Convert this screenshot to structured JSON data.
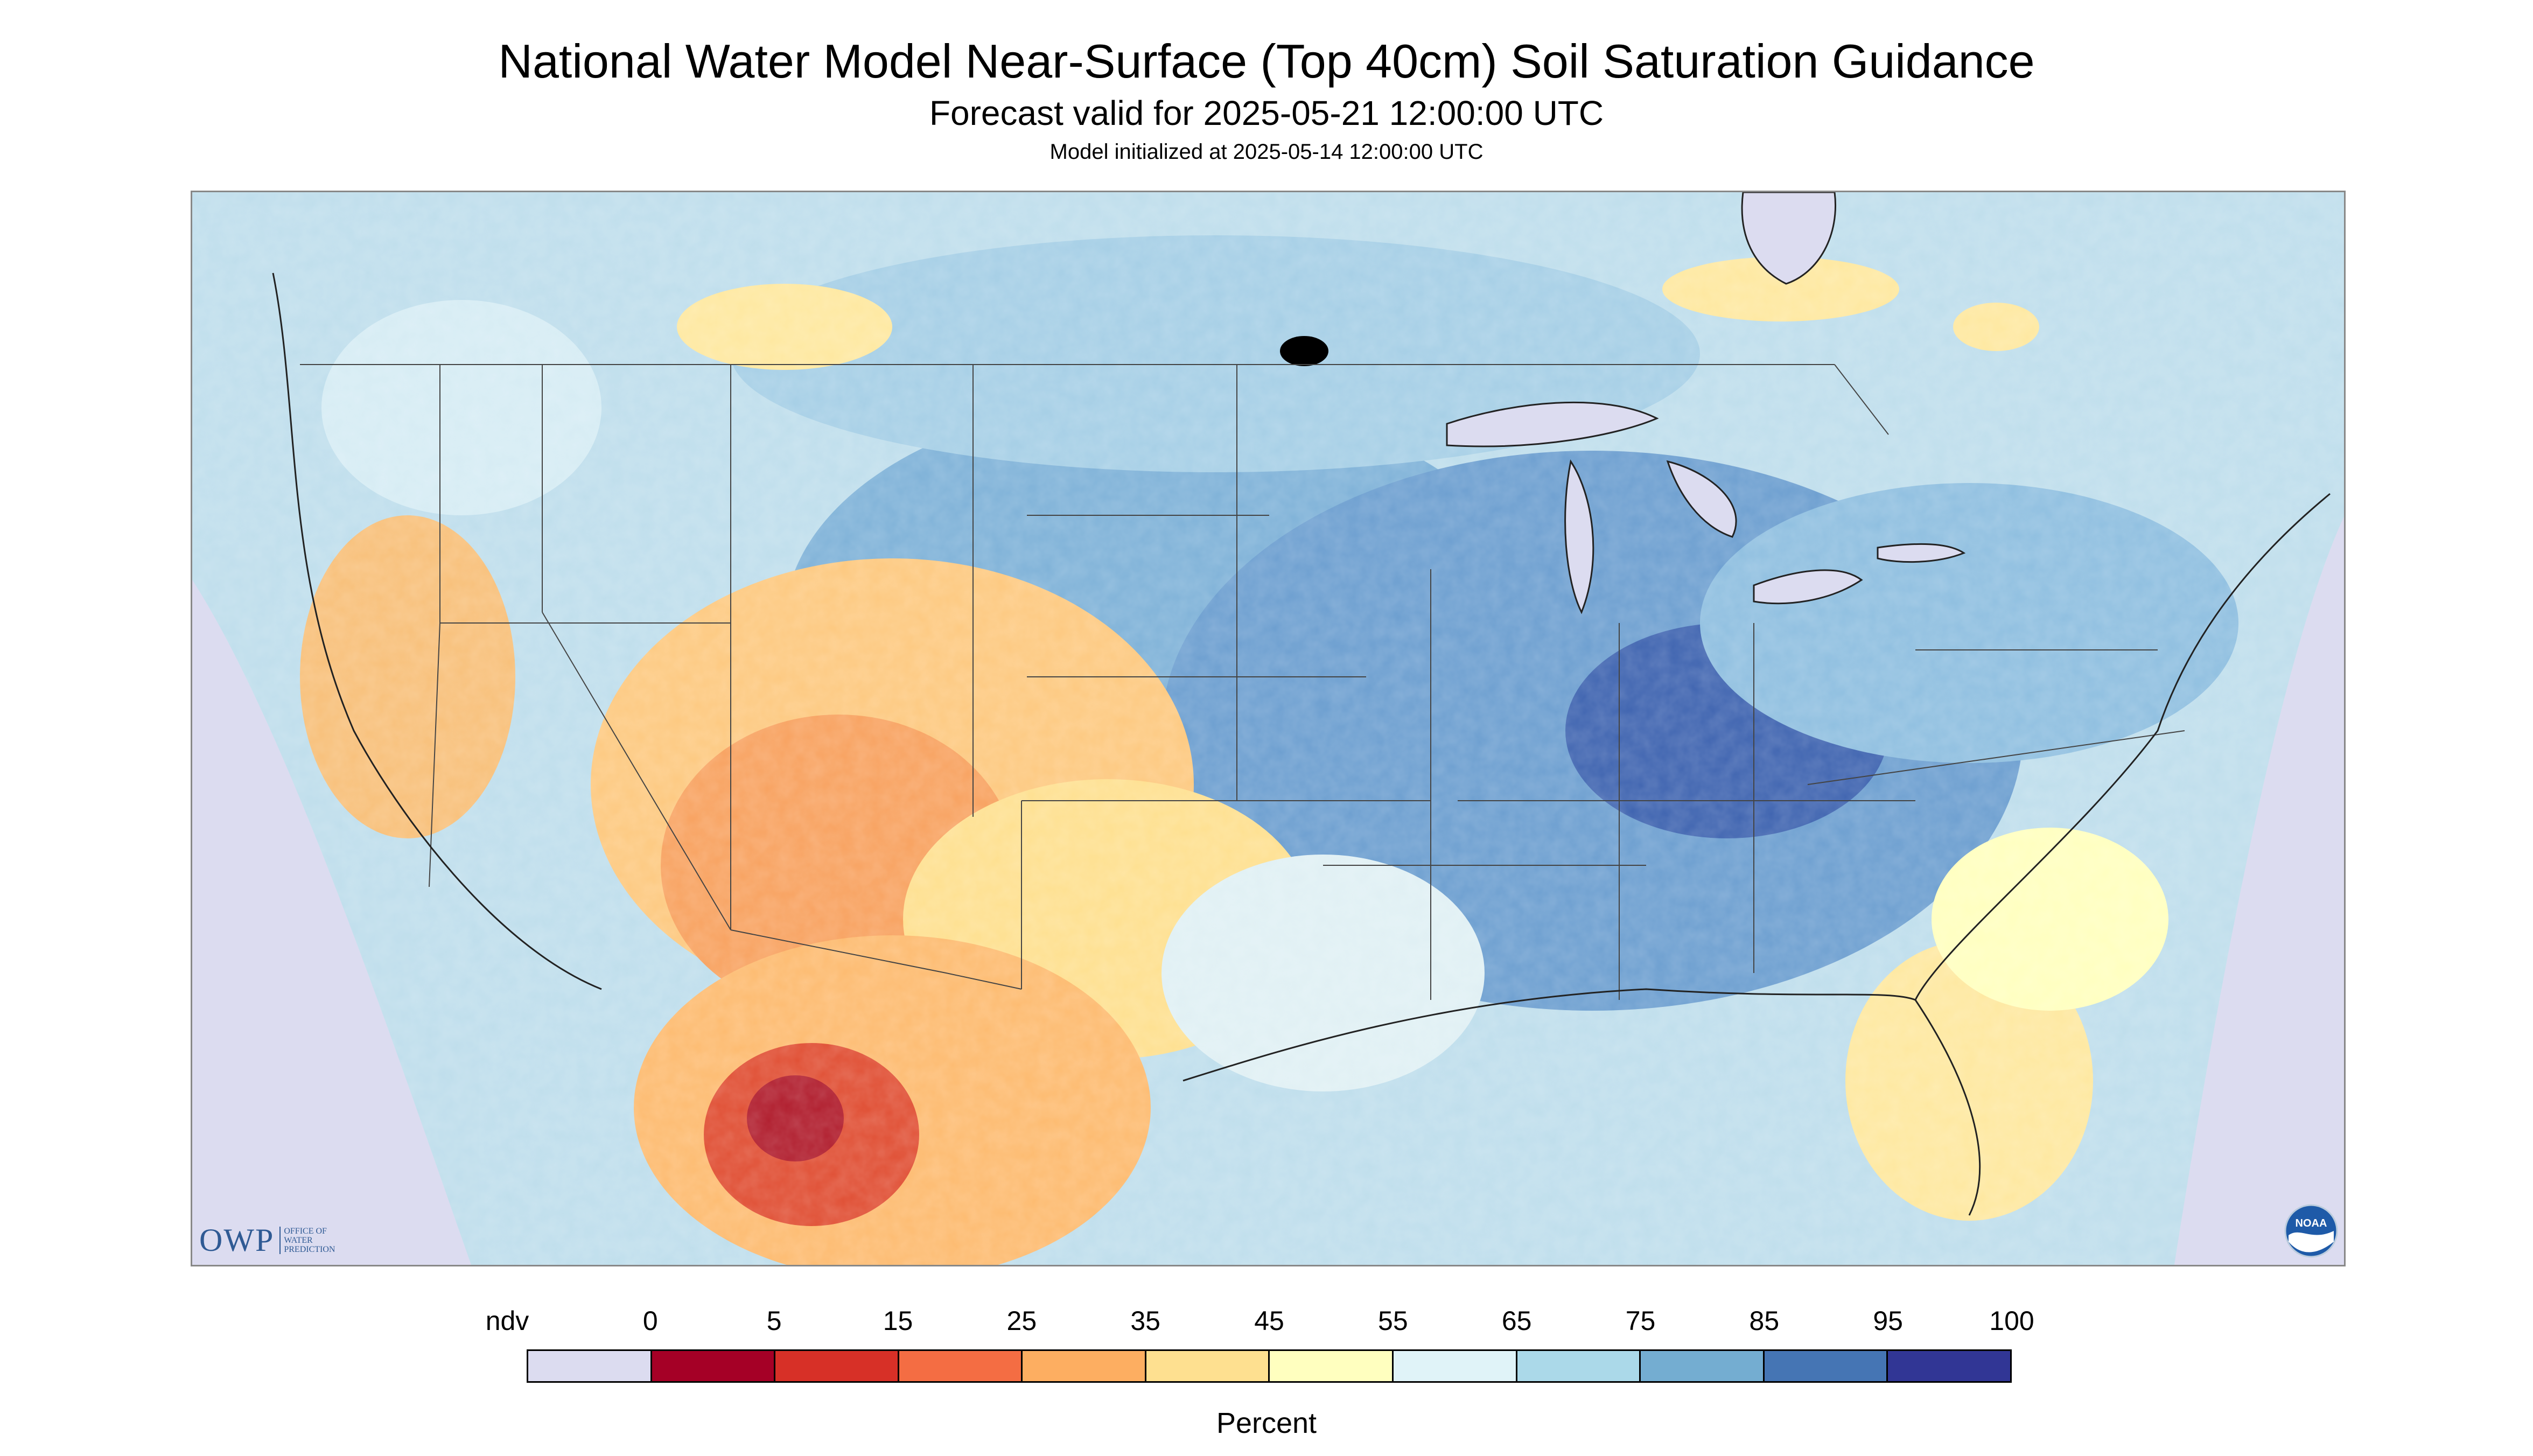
{
  "title": "National Water Model Near-Surface (Top 40cm) Soil Saturation Guidance",
  "forecast_valid": "Forecast valid for 2025-05-21 12:00:00 UTC",
  "model_init": "Model initialized at 2025-05-14 12:00:00 UTC",
  "logos": {
    "owp_text": "OWP",
    "owp_full": [
      "OFFICE OF",
      "WATER",
      "PREDICTION"
    ],
    "noaa_text": "NOAA",
    "noaa_icon": "noaa-logo-icon"
  },
  "legend": {
    "unit": "Percent",
    "labels": [
      "ndv",
      "0",
      "5",
      "15",
      "25",
      "35",
      "45",
      "55",
      "65",
      "75",
      "85",
      "95",
      "100"
    ],
    "colors": [
      "#dcdcf0",
      "#a50026",
      "#d73027",
      "#f46d43",
      "#fdae61",
      "#fee090",
      "#ffffbf",
      "#e0f3f8",
      "#abd9e9",
      "#74add1",
      "#4575b4",
      "#313695"
    ]
  },
  "map": {
    "region": "Contiguous United States",
    "colors": {
      "no_data": "#dcdcf0",
      "border": "#444444"
    }
  }
}
